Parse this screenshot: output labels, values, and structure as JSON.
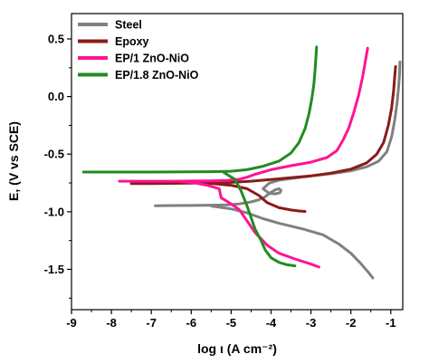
{
  "chart_data": {
    "type": "line",
    "title": "",
    "xlabel": "log ι (A cm⁻²)",
    "ylabel": "E, (V vs SCE)",
    "xlim": [
      -9,
      -0.7
    ],
    "ylim": [
      -1.85,
      0.72
    ],
    "xticks": [
      -9,
      -8,
      -7,
      -6,
      -5,
      -4,
      -3,
      -2,
      -1
    ],
    "xtick_labels": [
      "-9",
      "-8",
      "-7",
      "-6",
      "-5",
      "-4",
      "-3",
      "-2",
      "-1"
    ],
    "yticks": [
      -1.5,
      -1.0,
      -0.5,
      0.0,
      0.5
    ],
    "ytick_labels": [
      "-1.5",
      "-1.0",
      "-0.5",
      "0.0",
      "0.5"
    ],
    "grid": false,
    "legend_position": "top-left",
    "series": [
      {
        "name": "Steel",
        "color": "#808080",
        "branches": [
          [
            [
              -6.9,
              -0.948
            ],
            [
              -6.5,
              -0.946
            ],
            [
              -6.0,
              -0.945
            ],
            [
              -5.5,
              -0.943
            ],
            [
              -5.1,
              -0.94
            ],
            [
              -4.8,
              -0.932
            ],
            [
              -4.5,
              -0.915
            ],
            [
              -4.3,
              -0.895
            ],
            [
              -4.15,
              -0.87
            ],
            [
              -4.02,
              -0.835
            ],
            [
              -3.9,
              -0.81
            ],
            [
              -3.8,
              -0.8
            ],
            [
              -3.75,
              -0.815
            ],
            [
              -3.78,
              -0.835
            ],
            [
              -3.9,
              -0.845
            ],
            [
              -4.05,
              -0.84
            ],
            [
              -4.2,
              -0.8
            ],
            [
              -4.05,
              -0.752
            ],
            [
              -3.8,
              -0.726
            ],
            [
              -3.5,
              -0.712
            ],
            [
              -3.0,
              -0.69
            ],
            [
              -2.5,
              -0.67
            ],
            [
              -2.0,
              -0.645
            ],
            [
              -1.6,
              -0.61
            ],
            [
              -1.3,
              -0.56
            ],
            [
              -1.1,
              -0.48
            ],
            [
              -0.98,
              -0.35
            ],
            [
              -0.9,
              -0.2
            ],
            [
              -0.84,
              -0.05
            ],
            [
              -0.8,
              0.1
            ],
            [
              -0.78,
              0.2
            ],
            [
              -0.77,
              0.3
            ]
          ],
          [
            [
              -5.5,
              -0.95
            ],
            [
              -5.0,
              -0.975
            ],
            [
              -4.6,
              -1.01
            ],
            [
              -4.2,
              -1.06
            ],
            [
              -3.8,
              -1.1
            ],
            [
              -3.2,
              -1.15
            ],
            [
              -2.7,
              -1.2
            ],
            [
              -2.3,
              -1.28
            ],
            [
              -2.0,
              -1.36
            ],
            [
              -1.75,
              -1.45
            ],
            [
              -1.55,
              -1.53
            ],
            [
              -1.45,
              -1.575
            ]
          ]
        ]
      },
      {
        "name": "Epoxy",
        "color": "#8b1a1a",
        "branches": [
          [
            [
              -7.5,
              -0.755
            ],
            [
              -7.0,
              -0.755
            ],
            [
              -6.0,
              -0.752
            ],
            [
              -5.5,
              -0.748
            ],
            [
              -5.0,
              -0.745
            ],
            [
              -4.5,
              -0.735
            ],
            [
              -4.0,
              -0.72
            ],
            [
              -3.5,
              -0.705
            ],
            [
              -3.0,
              -0.688
            ],
            [
              -2.5,
              -0.665
            ],
            [
              -2.0,
              -0.63
            ],
            [
              -1.6,
              -0.575
            ],
            [
              -1.35,
              -0.5
            ],
            [
              -1.18,
              -0.4
            ],
            [
              -1.06,
              -0.25
            ],
            [
              -0.98,
              -0.1
            ],
            [
              -0.93,
              0.05
            ],
            [
              -0.9,
              0.18
            ],
            [
              -0.88,
              0.26
            ]
          ],
          [
            [
              -5.6,
              -0.752
            ],
            [
              -5.0,
              -0.77
            ],
            [
              -4.6,
              -0.8
            ],
            [
              -4.3,
              -0.86
            ],
            [
              -4.1,
              -0.92
            ],
            [
              -3.8,
              -0.965
            ],
            [
              -3.5,
              -0.985
            ],
            [
              -3.3,
              -0.993
            ],
            [
              -3.15,
              -0.997
            ]
          ]
        ]
      },
      {
        "name": "EP/1 ZnO-NiO",
        "color": "#ff1493",
        "branches": [
          [
            [
              -7.8,
              -0.735
            ],
            [
              -7.5,
              -0.735
            ],
            [
              -7.0,
              -0.735
            ],
            [
              -6.5,
              -0.735
            ],
            [
              -6.0,
              -0.733
            ],
            [
              -5.5,
              -0.732
            ],
            [
              -5.1,
              -0.728
            ],
            [
              -4.8,
              -0.718
            ],
            [
              -4.6,
              -0.7
            ],
            [
              -4.4,
              -0.675
            ],
            [
              -4.0,
              -0.635
            ],
            [
              -3.5,
              -0.6
            ],
            [
              -3.0,
              -0.57
            ],
            [
              -2.6,
              -0.53
            ],
            [
              -2.35,
              -0.47
            ],
            [
              -2.2,
              -0.38
            ],
            [
              -2.05,
              -0.27
            ],
            [
              -1.92,
              -0.13
            ],
            [
              -1.8,
              0.02
            ],
            [
              -1.7,
              0.18
            ],
            [
              -1.63,
              0.32
            ],
            [
              -1.58,
              0.42
            ]
          ],
          [
            [
              -6.3,
              -0.735
            ],
            [
              -5.9,
              -0.75
            ],
            [
              -5.6,
              -0.77
            ],
            [
              -5.3,
              -0.8
            ],
            [
              -5.25,
              -0.88
            ],
            [
              -5.1,
              -0.91
            ],
            [
              -4.8,
              -0.98
            ],
            [
              -4.6,
              -1.08
            ],
            [
              -4.4,
              -1.18
            ],
            [
              -4.1,
              -1.29
            ],
            [
              -3.8,
              -1.36
            ],
            [
              -3.4,
              -1.41
            ],
            [
              -3.0,
              -1.455
            ],
            [
              -2.8,
              -1.48
            ]
          ]
        ]
      },
      {
        "name": "EP/1.8 ZnO-NiO",
        "color": "#228b22",
        "branches": [
          [
            [
              -8.7,
              -0.655
            ],
            [
              -8.0,
              -0.655
            ],
            [
              -7.0,
              -0.655
            ],
            [
              -6.0,
              -0.653
            ],
            [
              -5.5,
              -0.652
            ],
            [
              -5.0,
              -0.648
            ],
            [
              -4.6,
              -0.635
            ],
            [
              -4.2,
              -0.605
            ],
            [
              -3.8,
              -0.56
            ],
            [
              -3.5,
              -0.49
            ],
            [
              -3.3,
              -0.4
            ],
            [
              -3.15,
              -0.28
            ],
            [
              -3.05,
              -0.15
            ],
            [
              -2.98,
              -0.02
            ],
            [
              -2.93,
              0.1
            ],
            [
              -2.9,
              0.22
            ],
            [
              -2.88,
              0.32
            ],
            [
              -2.86,
              0.43
            ]
          ],
          [
            [
              -5.2,
              -0.655
            ],
            [
              -4.9,
              -0.72
            ],
            [
              -4.75,
              -0.82
            ],
            [
              -4.6,
              -0.95
            ],
            [
              -4.5,
              -1.05
            ],
            [
              -4.4,
              -1.15
            ],
            [
              -4.25,
              -1.25
            ],
            [
              -4.15,
              -1.33
            ],
            [
              -4.0,
              -1.4
            ],
            [
              -3.8,
              -1.44
            ],
            [
              -3.6,
              -1.46
            ],
            [
              -3.4,
              -1.47
            ]
          ]
        ]
      }
    ]
  }
}
